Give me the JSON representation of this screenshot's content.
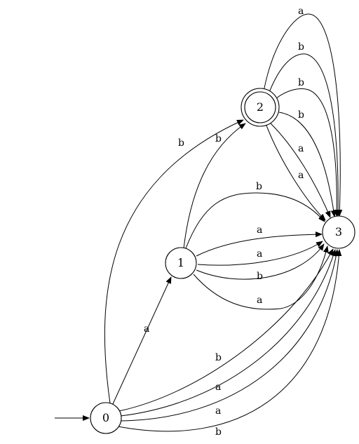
{
  "diagram": {
    "type": "finite-automaton",
    "start_state": "0",
    "accepting_states": [
      "2"
    ],
    "states": [
      {
        "id": "n0",
        "label": "0",
        "accepting": false
      },
      {
        "id": "n1",
        "label": "1",
        "accepting": false
      },
      {
        "id": "n2",
        "label": "2",
        "accepting": true
      },
      {
        "id": "n3",
        "label": "3",
        "accepting": false
      }
    ],
    "transitions": [
      {
        "from": "0",
        "to": "1",
        "label": "a"
      },
      {
        "from": "0",
        "to": "2",
        "label": "b"
      },
      {
        "from": "0",
        "to": "3",
        "label": "b"
      },
      {
        "from": "0",
        "to": "3",
        "label": "a"
      },
      {
        "from": "0",
        "to": "3",
        "label": "a"
      },
      {
        "from": "0",
        "to": "3",
        "label": "b"
      },
      {
        "from": "1",
        "to": "2",
        "label": "b"
      },
      {
        "from": "1",
        "to": "3",
        "label": "b"
      },
      {
        "from": "1",
        "to": "3",
        "label": "a"
      },
      {
        "from": "1",
        "to": "3",
        "label": "a"
      },
      {
        "from": "1",
        "to": "3",
        "label": "b"
      },
      {
        "from": "1",
        "to": "3",
        "label": "a"
      },
      {
        "from": "2",
        "to": "3",
        "label": "a"
      },
      {
        "from": "2",
        "to": "3",
        "label": "b"
      },
      {
        "from": "2",
        "to": "3",
        "label": "b"
      },
      {
        "from": "2",
        "to": "3",
        "label": "b"
      },
      {
        "from": "2",
        "to": "3",
        "label": "a"
      },
      {
        "from": "2",
        "to": "3",
        "label": "a"
      }
    ]
  }
}
